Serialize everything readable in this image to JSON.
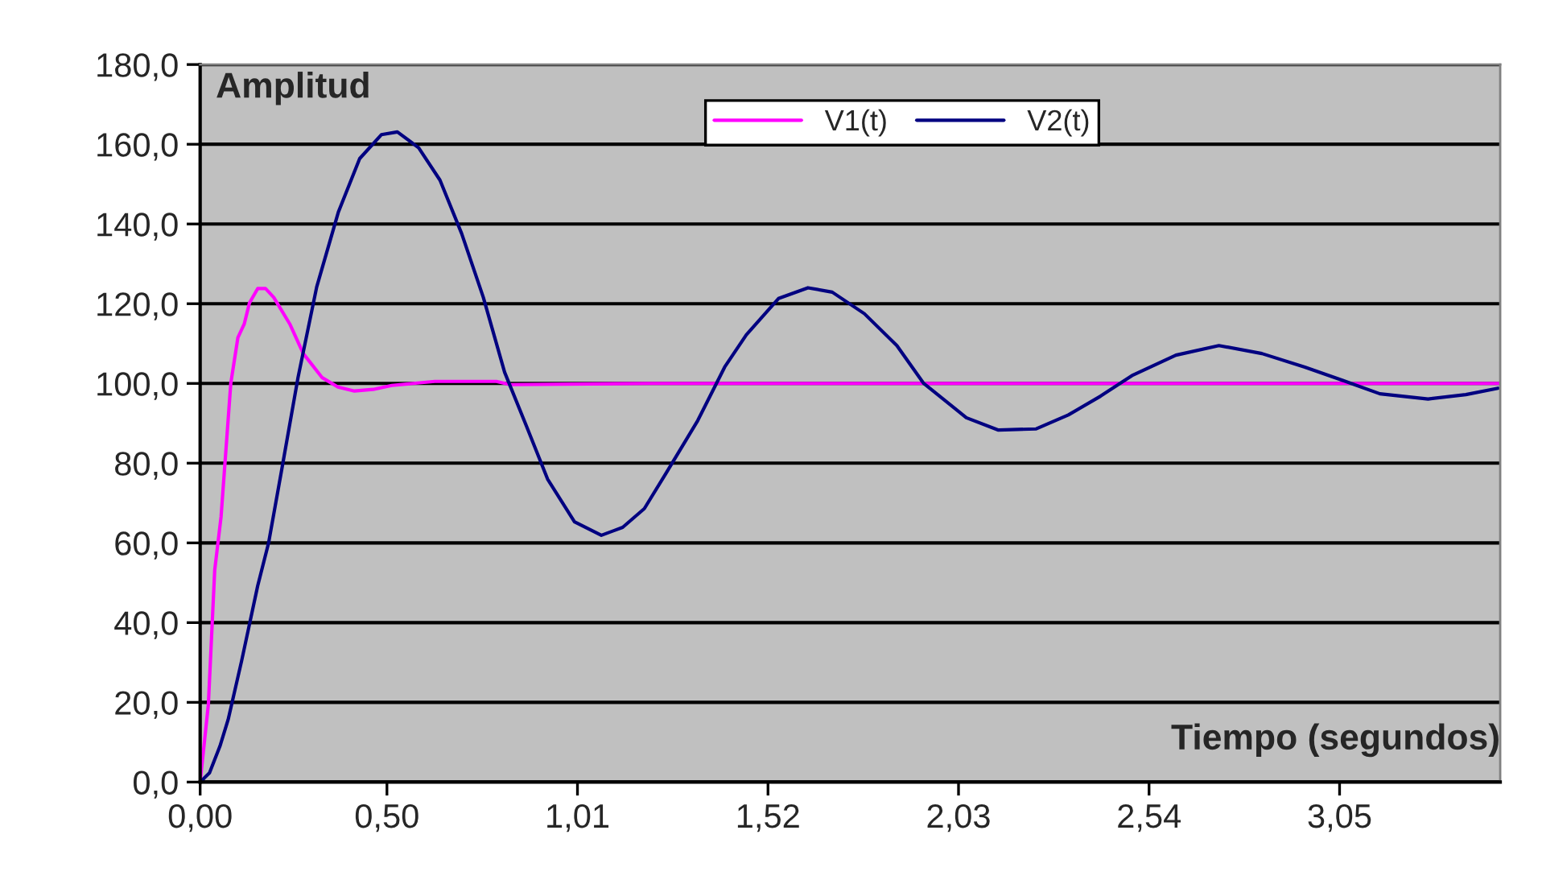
{
  "chart_data": {
    "type": "line",
    "xlabel": "Tiempo (segundos)",
    "ylabel": "Amplitud",
    "xlim": [
      0,
      3.48
    ],
    "ylim": [
      0,
      180
    ],
    "xticks": [
      {
        "value": 0,
        "label": "0,00"
      },
      {
        "value": 0.5,
        "label": "0,50"
      },
      {
        "value": 1.01,
        "label": "1,01"
      },
      {
        "value": 1.52,
        "label": "1,52"
      },
      {
        "value": 2.03,
        "label": "2,03"
      },
      {
        "value": 2.54,
        "label": "2,54"
      },
      {
        "value": 3.05,
        "label": "3,05"
      }
    ],
    "yticks": [
      {
        "value": 0,
        "label": "0,0"
      },
      {
        "value": 20,
        "label": "20,0"
      },
      {
        "value": 40,
        "label": "40,0"
      },
      {
        "value": 60,
        "label": "60,0"
      },
      {
        "value": 80,
        "label": "80,0"
      },
      {
        "value": 100,
        "label": "100,0"
      },
      {
        "value": 120,
        "label": "120,0"
      },
      {
        "value": 140,
        "label": "140,0"
      },
      {
        "value": 160,
        "label": "160,0"
      },
      {
        "value": 180,
        "label": "180,0"
      }
    ],
    "grid": "y",
    "legend": "top",
    "line_style": "solid",
    "marker": "none",
    "series": [
      {
        "name": "V1(t)",
        "color": "#ff00ff",
        "x": [
          0,
          0.022,
          0.039,
          0.056,
          0.082,
          0.101,
          0.118,
          0.132,
          0.154,
          0.175,
          0.197,
          0.24,
          0.276,
          0.326,
          0.369,
          0.413,
          0.463,
          0.513,
          0.628,
          0.793,
          0.83,
          1.2,
          2.0,
          3.0,
          3.48
        ],
        "values": [
          0,
          19.5,
          53.2,
          66.6,
          100,
          111.5,
          114.9,
          120.2,
          123.8,
          123.8,
          121.6,
          114.9,
          107.5,
          101.5,
          99.1,
          98.1,
          98.5,
          99.5,
          100.5,
          100.5,
          99.7,
          100,
          100,
          100,
          100
        ]
      },
      {
        "name": "V2(t)",
        "color": "#000080",
        "x": [
          0,
          0.025,
          0.053,
          0.075,
          0.111,
          0.154,
          0.183,
          0.219,
          0.262,
          0.312,
          0.37,
          0.427,
          0.485,
          0.528,
          0.585,
          0.642,
          0.7,
          0.758,
          0.815,
          0.873,
          0.93,
          1.002,
          1.074,
          1.131,
          1.189,
          1.246,
          1.332,
          1.404,
          1.462,
          1.548,
          1.627,
          1.692,
          1.778,
          1.865,
          1.936,
          2.051,
          2.137,
          2.238,
          2.324,
          2.41,
          2.497,
          2.612,
          2.727,
          2.842,
          2.957,
          3.057,
          3.158,
          3.287,
          3.388,
          3.474
        ],
        "values": [
          0,
          2.3,
          9,
          15.7,
          30.4,
          49.2,
          59.9,
          78.7,
          101.5,
          124.2,
          143,
          156.4,
          162.4,
          163.1,
          159.1,
          151,
          137.6,
          121.6,
          102.8,
          89.4,
          76,
          65.3,
          61.9,
          63.9,
          68.6,
          77.3,
          90.7,
          104.1,
          112.2,
          121.3,
          124,
          122.9,
          117.5,
          109.5,
          100.1,
          91.4,
          88.3,
          88.6,
          92.1,
          96.8,
          102.1,
          107.1,
          109.5,
          107.5,
          104.1,
          100.8,
          97.4,
          96.1,
          97.2,
          98.8
        ]
      }
    ]
  }
}
